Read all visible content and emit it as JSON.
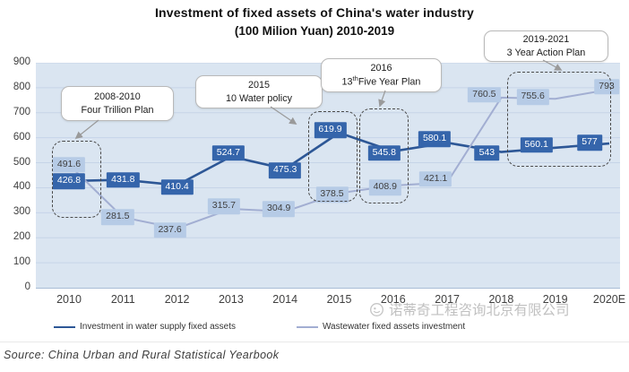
{
  "title": {
    "line1": "Investment of fixed assets of China's water industry",
    "line2": "(100 Milion Yuan) 2010-2019"
  },
  "chart_data": {
    "type": "line",
    "categories": [
      "2010",
      "2011",
      "2012",
      "2013",
      "2014",
      "2015",
      "2016",
      "2017",
      "2018",
      "2019",
      "2020E"
    ],
    "series": [
      {
        "name": "Investment in water supply fixed assets",
        "color": "#2d5796",
        "label_bg": "#3565ab",
        "label_color": "#ffffff",
        "values": [
          426.8,
          431.8,
          410.4,
          524.7,
          475.3,
          619.9,
          545.8,
          580.1,
          543,
          560.1,
          577
        ],
        "label_dx": [
          0,
          0,
          0,
          -3,
          0,
          -10,
          -10,
          -14,
          -16,
          -21,
          -22
        ],
        "label_dy": [
          0,
          0,
          2,
          -4,
          2,
          -3,
          2,
          -4,
          1,
          -3,
          -1
        ]
      },
      {
        "name": "Wastewater fixed assets investment",
        "color": "#a2aed2",
        "label_bg": "#b6cbe6",
        "label_color": "#3f3f3f",
        "values": [
          491.6,
          281.5,
          237.6,
          315.7,
          304.9,
          378.5,
          408.9,
          421.1,
          760.5,
          755.6,
          793
        ],
        "label_dx": [
          0,
          -6,
          -8,
          -8,
          -7,
          -8,
          -9,
          -13,
          -19,
          -25,
          -3
        ],
        "label_dy": [
          0,
          0,
          2,
          -3,
          -3,
          2,
          2,
          -4,
          -3,
          -2,
          -3
        ]
      }
    ],
    "ylim": [
      0,
      900
    ],
    "ytick_step": 100,
    "grid": true,
    "legend_position": "bottom",
    "plot_bg_color": "#dae5f1",
    "gridline_color": "#c6d4e8"
  },
  "annotations": [
    {
      "line1": "2008-2010",
      "line2": "Four Trillion Plan"
    },
    {
      "line1": "2015",
      "line2": "10 Water policy"
    },
    {
      "line1": "2016",
      "line2_prefix": "13",
      "line2_sup": "th",
      "line2_rest": "Five Year Plan"
    },
    {
      "line1": "2019-2021",
      "line2": "3 Year Action Plan"
    }
  ],
  "watermark": {
    "text": "诺蒂奇工程咨询北京有限公司"
  },
  "source": "Source: China Urban and Rural Statistical Yearbook"
}
